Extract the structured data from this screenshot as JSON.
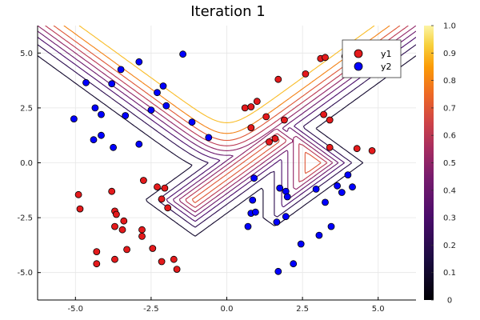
{
  "chart_data": {
    "type": "scatter",
    "title": "Iteration 1",
    "xlabel": "",
    "ylabel": "",
    "xlim": [
      -6.25,
      6.25
    ],
    "ylim": [
      -6.25,
      6.25
    ],
    "x_ticks": [
      -5.0,
      -2.5,
      0.0,
      2.5,
      5.0
    ],
    "x_tick_labels": [
      "-5.0",
      "-2.5",
      "0.0",
      "2.5",
      "5.0"
    ],
    "y_ticks": [
      -5.0,
      -2.5,
      0.0,
      2.5,
      5.0
    ],
    "y_tick_labels": [
      "-5.0",
      "-2.5",
      "0.0",
      "2.5",
      "5.0"
    ],
    "grid": true,
    "legend_position": "top-right",
    "series": [
      {
        "name": "y1",
        "color": "#e41a1c",
        "points": [
          [
            0.6,
            2.5
          ],
          [
            0.8,
            2.55
          ],
          [
            1.0,
            2.8
          ],
          [
            0.8,
            1.6
          ],
          [
            1.3,
            2.1
          ],
          [
            1.7,
            3.8
          ],
          [
            2.6,
            4.05
          ],
          [
            3.1,
            4.75
          ],
          [
            3.25,
            4.8
          ],
          [
            3.9,
            4.85
          ],
          [
            3.2,
            2.2
          ],
          [
            3.4,
            1.95
          ],
          [
            1.9,
            1.95
          ],
          [
            1.4,
            0.95
          ],
          [
            1.6,
            1.1
          ],
          [
            3.4,
            0.7
          ],
          [
            4.3,
            0.65
          ],
          [
            4.8,
            0.55
          ],
          [
            -4.9,
            -1.45
          ],
          [
            -4.85,
            -2.1
          ],
          [
            -3.8,
            -1.3
          ],
          [
            -3.7,
            -2.2
          ],
          [
            -3.65,
            -2.35
          ],
          [
            -3.4,
            -2.65
          ],
          [
            -3.45,
            -3.05
          ],
          [
            -3.7,
            -2.9
          ],
          [
            -3.7,
            -4.4
          ],
          [
            -4.3,
            -4.6
          ],
          [
            -4.3,
            -4.05
          ],
          [
            -3.3,
            -3.95
          ],
          [
            -2.8,
            -3.35
          ],
          [
            -2.75,
            -0.8
          ],
          [
            -2.3,
            -1.1
          ],
          [
            -2.15,
            -1.65
          ],
          [
            -2.05,
            -1.15
          ],
          [
            -1.95,
            -2.05
          ],
          [
            -2.15,
            -4.5
          ],
          [
            -1.75,
            -4.4
          ],
          [
            -2.45,
            -3.9
          ],
          [
            -2.8,
            -3.05
          ],
          [
            -1.65,
            -4.85
          ]
        ]
      },
      {
        "name": "y2",
        "color": "#0000ff",
        "points": [
          [
            -4.65,
            3.65
          ],
          [
            -3.8,
            3.6
          ],
          [
            -3.5,
            4.25
          ],
          [
            -2.9,
            4.6
          ],
          [
            -2.1,
            3.5
          ],
          [
            -1.45,
            4.95
          ],
          [
            -2.3,
            3.2
          ],
          [
            -2.0,
            2.6
          ],
          [
            -2.5,
            2.4
          ],
          [
            -3.35,
            2.15
          ],
          [
            -4.35,
            2.5
          ],
          [
            -4.15,
            2.2
          ],
          [
            -5.05,
            2.0
          ],
          [
            -4.4,
            1.05
          ],
          [
            -4.15,
            1.25
          ],
          [
            -3.75,
            0.7
          ],
          [
            -2.9,
            0.85
          ],
          [
            -1.15,
            1.85
          ],
          [
            -0.6,
            1.15
          ],
          [
            0.9,
            -0.7
          ],
          [
            0.85,
            -1.7
          ],
          [
            0.8,
            -2.3
          ],
          [
            0.95,
            -2.25
          ],
          [
            0.7,
            -2.9
          ],
          [
            1.65,
            -2.7
          ],
          [
            1.75,
            -1.15
          ],
          [
            1.95,
            -1.3
          ],
          [
            2.0,
            -1.55
          ],
          [
            1.95,
            -2.45
          ],
          [
            1.7,
            -4.95
          ],
          [
            2.2,
            -4.6
          ],
          [
            2.45,
            -3.7
          ],
          [
            3.05,
            -3.3
          ],
          [
            3.25,
            -1.8
          ],
          [
            2.95,
            -1.2
          ],
          [
            3.45,
            -2.9
          ],
          [
            3.65,
            -1.05
          ],
          [
            3.8,
            -1.35
          ],
          [
            4.15,
            -1.1
          ],
          [
            4.0,
            -0.55
          ]
        ]
      }
    ],
    "contour_levels": [
      0.1,
      0.2,
      0.3,
      0.4,
      0.5,
      0.6,
      0.7,
      0.8,
      0.9
    ],
    "colorbar": {
      "min": 0.0,
      "max": 1.0,
      "ticks": [
        0.0,
        0.1,
        0.2,
        0.3,
        0.4,
        0.5,
        0.6,
        0.7,
        0.8,
        0.9,
        1.0
      ],
      "tick_labels": [
        "0",
        "0.1",
        "0.2",
        "0.3",
        "0.4",
        "0.5",
        "0.6",
        "0.7",
        "0.8",
        "0.9",
        "1.0"
      ]
    }
  }
}
